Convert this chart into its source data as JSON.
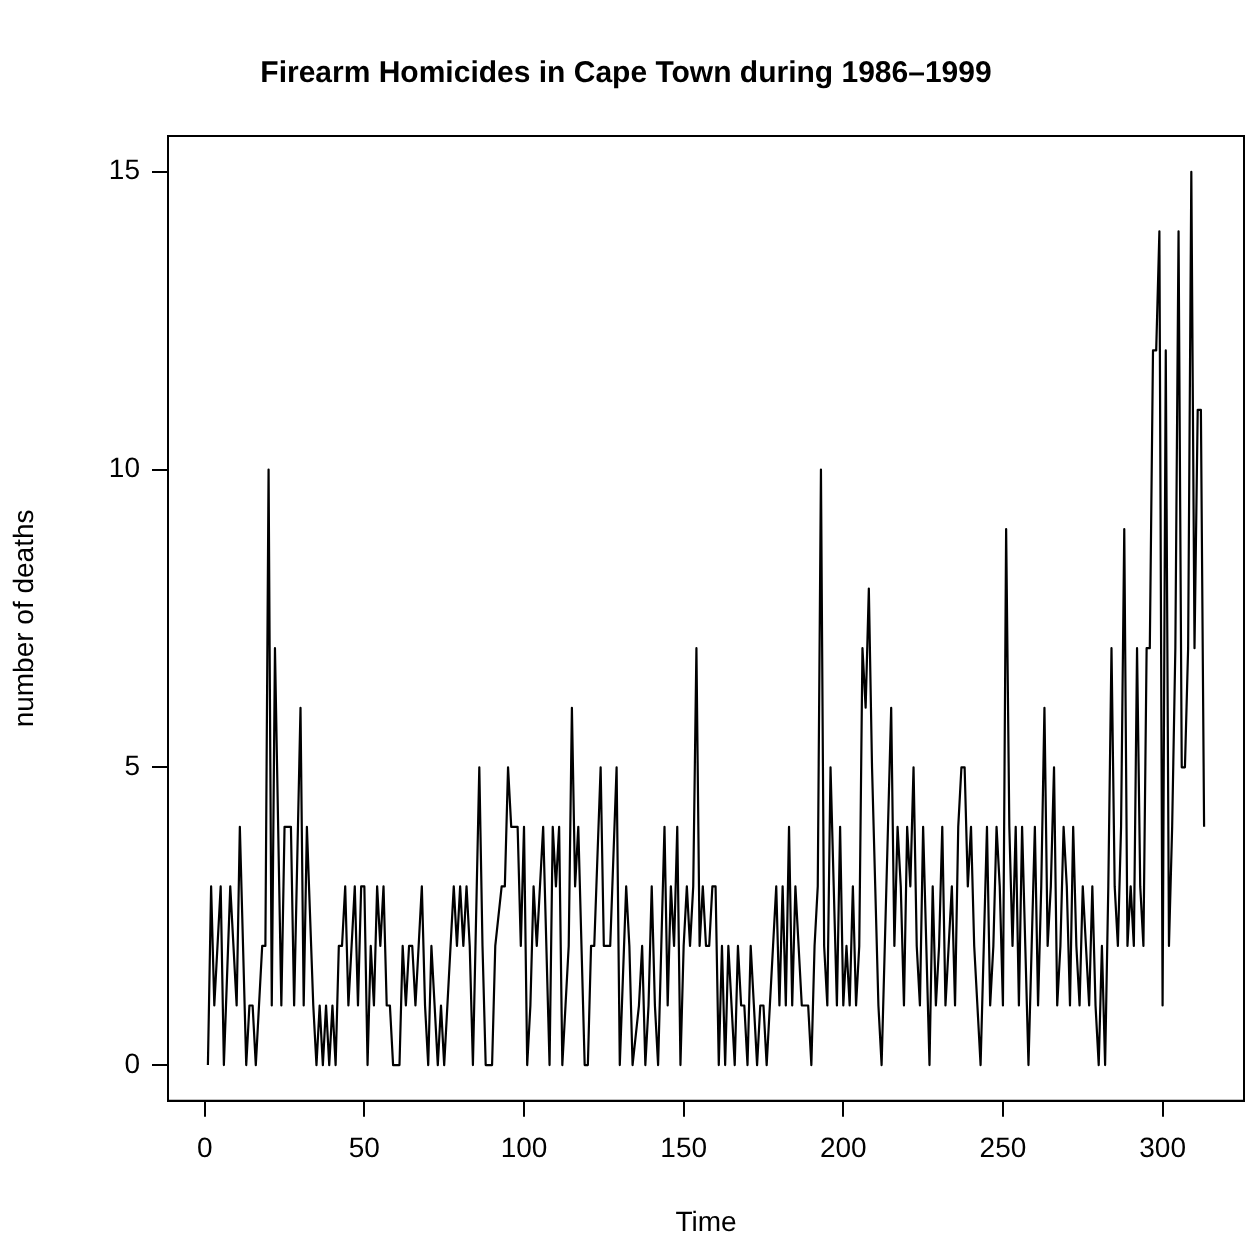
{
  "chart_data": {
    "type": "line",
    "title": "Firearm Homicides in Cape Town during 1986–1999",
    "xlabel": "Time",
    "ylabel": "number of deaths",
    "x": [
      1,
      2,
      3,
      5,
      6,
      8,
      10,
      11,
      13,
      14,
      15,
      16,
      18,
      19,
      20,
      21,
      22,
      24,
      25,
      27,
      28,
      30,
      31,
      32,
      34,
      35,
      36,
      37,
      38,
      39,
      40,
      41,
      42,
      43,
      44,
      45,
      47,
      48,
      49,
      50,
      51,
      52,
      53,
      54,
      55,
      56,
      57,
      58,
      59,
      61,
      62,
      63,
      64,
      65,
      66,
      67,
      68,
      69,
      70,
      71,
      72,
      73,
      74,
      75,
      78,
      79,
      80,
      81,
      82,
      83,
      84,
      86,
      87,
      88,
      90,
      91,
      93,
      94,
      95,
      96,
      98,
      99,
      100,
      101,
      102,
      103,
      104,
      106,
      108,
      109,
      110,
      111,
      112,
      113,
      114,
      115,
      116,
      117,
      119,
      120,
      121,
      122,
      124,
      125,
      127,
      129,
      130,
      132,
      133,
      134,
      136,
      137,
      138,
      139,
      140,
      141,
      142,
      143,
      144,
      145,
      146,
      147,
      148,
      149,
      150,
      151,
      152,
      153,
      154,
      155,
      156,
      157,
      158,
      159,
      160,
      161,
      162,
      163,
      164,
      165,
      166,
      167,
      168,
      169,
      170,
      171,
      172,
      173,
      174,
      175,
      176,
      177,
      178,
      179,
      180,
      181,
      182,
      183,
      184,
      185,
      186,
      187,
      188,
      189,
      190,
      191,
      192,
      193,
      194,
      195,
      196,
      197,
      198,
      199,
      200,
      201,
      202,
      203,
      204,
      205,
      206,
      207,
      208,
      209,
      210,
      211,
      212,
      213,
      214,
      215,
      216,
      217,
      218,
      219,
      220,
      221,
      222,
      223,
      224,
      225,
      226,
      227,
      228,
      229,
      230,
      231,
      232,
      233,
      234,
      235,
      236,
      237,
      238,
      239,
      240,
      241,
      242,
      243,
      244,
      245,
      246,
      247,
      248,
      249,
      250,
      251,
      252,
      253,
      254,
      255,
      256,
      257,
      258,
      259,
      260,
      261,
      262,
      263,
      264,
      265,
      266,
      267,
      268,
      269,
      270,
      271,
      272,
      273,
      274,
      275,
      276,
      277,
      278,
      279,
      280,
      281,
      282,
      283,
      284,
      285,
      286,
      287,
      288,
      289,
      290,
      291,
      292,
      293,
      294,
      295,
      296,
      297,
      298,
      299,
      300,
      301,
      302,
      303,
      304,
      305,
      306,
      307,
      308,
      309,
      310,
      311,
      312,
      313
    ],
    "series": [
      {
        "color": "#000000",
        "values": [
          0,
          3,
          1,
          3,
          0,
          3,
          1,
          4,
          0,
          1,
          1,
          0,
          2,
          2,
          10,
          1,
          7,
          1,
          4,
          4,
          1,
          6,
          1,
          4,
          1,
          0,
          1,
          0,
          1,
          0,
          1,
          0,
          2,
          2,
          3,
          1,
          3,
          1,
          3,
          3,
          0,
          2,
          1,
          3,
          2,
          3,
          1,
          1,
          0,
          0,
          2,
          1,
          2,
          2,
          1,
          2,
          3,
          1,
          0,
          2,
          1,
          0,
          1,
          0,
          3,
          2,
          3,
          2,
          3,
          2,
          0,
          5,
          2,
          0,
          0,
          2,
          3,
          3,
          5,
          4,
          4,
          2,
          4,
          0,
          1,
          3,
          2,
          4,
          0,
          4,
          3,
          4,
          0,
          1,
          2,
          6,
          3,
          4,
          0,
          0,
          2,
          2,
          5,
          2,
          2,
          5,
          0,
          3,
          2,
          0,
          1,
          2,
          0,
          1,
          3,
          1,
          0,
          2,
          4,
          1,
          3,
          2,
          4,
          0,
          2,
          3,
          2,
          3,
          7,
          2,
          3,
          2,
          2,
          3,
          3,
          0,
          2,
          0,
          2,
          1,
          0,
          2,
          1,
          1,
          0,
          2,
          1,
          0,
          1,
          1,
          0,
          1,
          2,
          3,
          1,
          3,
          1,
          4,
          1,
          3,
          2,
          1,
          1,
          1,
          0,
          2,
          3,
          10,
          2,
          1,
          5,
          3,
          1,
          4,
          1,
          2,
          1,
          3,
          1,
          2,
          7,
          6,
          8,
          5,
          3,
          1,
          0,
          2,
          4,
          6,
          2,
          4,
          3,
          1,
          4,
          3,
          5,
          2,
          1,
          4,
          2,
          0,
          3,
          1,
          2,
          4,
          1,
          2,
          3,
          1,
          4,
          5,
          5,
          3,
          4,
          2,
          1,
          0,
          2,
          4,
          1,
          2,
          4,
          3,
          1,
          9,
          4,
          2,
          4,
          1,
          4,
          2,
          0,
          2,
          4,
          1,
          3,
          6,
          2,
          3,
          5,
          1,
          2,
          4,
          3,
          1,
          4,
          2,
          1,
          3,
          2,
          1,
          3,
          1,
          0,
          2,
          0,
          3,
          7,
          3,
          2,
          4,
          9,
          2,
          3,
          2,
          7,
          3,
          2,
          7,
          7,
          12,
          12,
          14,
          1,
          12,
          2,
          4,
          7,
          14,
          5,
          5,
          7,
          15,
          7,
          11,
          11,
          4
        ]
      }
    ],
    "xlim": [
      -11.5,
      325.5
    ],
    "ylim": [
      -0.6,
      15.6
    ],
    "xticks": [
      0,
      50,
      100,
      150,
      200,
      250,
      300
    ],
    "yticks": [
      0,
      5,
      10,
      15
    ],
    "grid": false,
    "legend": false,
    "marker": "none",
    "line_style": "solid"
  }
}
